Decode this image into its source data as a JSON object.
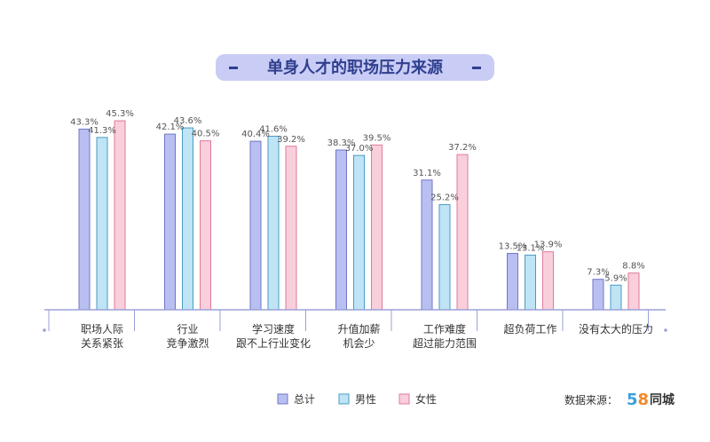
{
  "colors": {
    "total": "#b9bff0",
    "total_stroke": "#7077c8",
    "male": "#bfe4f5",
    "male_stroke": "#4a9cc4",
    "female": "#f9cfdb",
    "female_stroke": "#e07a9a",
    "title_bar": "#c9ccf4",
    "title_text": "#2f3f8f",
    "axis": "#9aa2d8",
    "logo_5": "#3aa0dc",
    "logo_8": "#f08a2a"
  },
  "chart_data": {
    "type": "bar",
    "title": "单身人才的职场压力来源",
    "categories": [
      [
        "职场人际",
        "关系紧张"
      ],
      [
        "行业",
        "竞争激烈"
      ],
      [
        "学习速度",
        "跟不上行业变化"
      ],
      [
        "升值加薪",
        "机会少"
      ],
      [
        "工作难度",
        "超过能力范围"
      ],
      [
        "超负荷工作"
      ],
      [
        "没有太大的压力"
      ]
    ],
    "series": [
      {
        "name": "总计",
        "key": "total",
        "values": [
          43.3,
          42.1,
          40.4,
          38.3,
          31.1,
          13.5,
          7.3
        ],
        "labels": [
          "43.3%",
          "42.1%",
          "40.4%",
          "38.3%",
          "31.1%",
          "13.5%",
          "7.3%"
        ]
      },
      {
        "name": "男性",
        "key": "male",
        "values": [
          41.3,
          43.6,
          41.6,
          37.0,
          25.2,
          13.1,
          5.9
        ],
        "labels": [
          "41.3%",
          "43.6%",
          "41.6%",
          "37.0%",
          "25.2%",
          "13.1%",
          "5.9%"
        ]
      },
      {
        "name": "女性",
        "key": "female",
        "values": [
          45.3,
          40.5,
          39.2,
          39.5,
          37.2,
          13.9,
          8.8
        ],
        "labels": [
          "45.3%",
          "40.5%",
          "39.2%",
          "39.5%",
          "37.2%",
          "13.9%",
          "8.8%"
        ]
      }
    ],
    "xlabel": "",
    "ylabel": "",
    "ylim": [
      0,
      50
    ],
    "grid": false,
    "legend": "bottom-center"
  },
  "source": {
    "label": "数据来源：",
    "logo_digits": "58",
    "logo_name": "同城"
  }
}
